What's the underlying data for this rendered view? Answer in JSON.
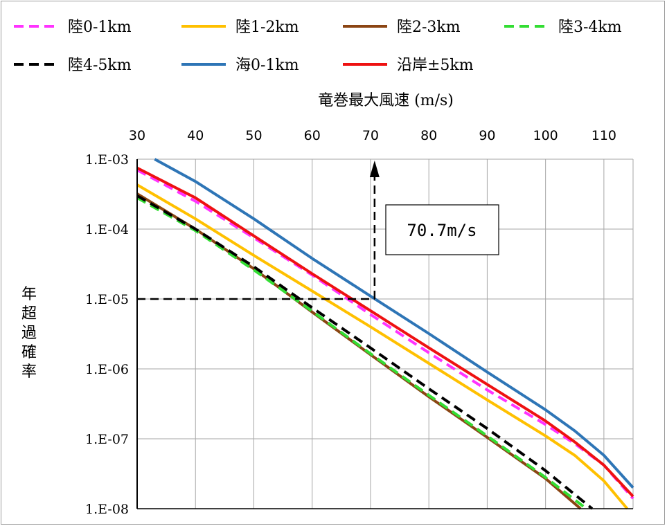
{
  "chart_data": {
    "type": "line",
    "xlabel": "竜巻最大風速 (m/s)",
    "ylabel": "年超過確率",
    "x_axis_position": "top",
    "xlim": [
      30,
      115
    ],
    "ylim": [
      1e-08,
      0.001
    ],
    "y_scale": "log",
    "x_ticks": [
      30,
      40,
      50,
      60,
      70,
      80,
      90,
      100,
      110
    ],
    "y_ticks": [
      {
        "value": 0.001,
        "label": "1.E-03"
      },
      {
        "value": 0.0001,
        "label": "1.E-04"
      },
      {
        "value": 1e-05,
        "label": "1.E-05"
      },
      {
        "value": 1e-06,
        "label": "1.E-06"
      },
      {
        "value": 1e-07,
        "label": "1.E-07"
      },
      {
        "value": 1e-08,
        "label": "1.E-08"
      }
    ],
    "grid": true,
    "legend_placement": "top",
    "series": [
      {
        "name": "陸0-1km",
        "color": "#ff33ff",
        "dash": true,
        "x": [
          30,
          40,
          50,
          60,
          70,
          80,
          90,
          100,
          105,
          110,
          115
        ],
        "y": [
          0.0007,
          0.00025,
          7.5e-05,
          2.2e-05,
          6e-06,
          1.7e-06,
          5e-07,
          1.6e-07,
          8.5e-08,
          4.2e-08,
          1.4e-08
        ]
      },
      {
        "name": "陸1-2km",
        "color": "#ffc000",
        "dash": false,
        "x": [
          30,
          40,
          50,
          60,
          70,
          80,
          90,
          100,
          105,
          110,
          114
        ],
        "y": [
          0.00043,
          0.00014,
          4.2e-05,
          1.3e-05,
          4e-06,
          1.2e-06,
          3.6e-07,
          1.1e-07,
          5.8e-08,
          2.5e-08,
          1e-08
        ]
      },
      {
        "name": "陸2-3km",
        "color": "#8b4513",
        "dash": false,
        "x": [
          30,
          40,
          50,
          60,
          70,
          80,
          90,
          100,
          106
        ],
        "y": [
          0.00032,
          0.0001,
          2.7e-05,
          6.5e-06,
          1.6e-06,
          4e-07,
          1.05e-07,
          2.7e-08,
          1e-08
        ]
      },
      {
        "name": "陸3-4km",
        "color": "#33dd33",
        "dash": true,
        "x": [
          30,
          40,
          50,
          60,
          70,
          80,
          90,
          100,
          107
        ],
        "y": [
          0.00028,
          9.5e-05,
          2.6e-05,
          6.7e-06,
          1.65e-06,
          4.2e-07,
          1.1e-07,
          2.8e-08,
          1e-08
        ]
      },
      {
        "name": "陸4-5km",
        "color": "#000000",
        "dash": true,
        "x": [
          30,
          40,
          50,
          60,
          70,
          80,
          90,
          100,
          108
        ],
        "y": [
          0.0003,
          0.0001,
          2.9e-05,
          7.5e-06,
          2e-06,
          5.2e-07,
          1.4e-07,
          3.5e-08,
          1e-08
        ]
      },
      {
        "name": "海0-1km",
        "color": "#2e75b6",
        "dash": false,
        "x": [
          33,
          40,
          50,
          60,
          70,
          80,
          90,
          100,
          105,
          110,
          115
        ],
        "y": [
          0.001,
          0.00048,
          0.00014,
          3.8e-05,
          1.1e-05,
          3.2e-06,
          9e-07,
          2.6e-07,
          1.3e-07,
          5.8e-08,
          2e-08
        ]
      },
      {
        "name": "沿岸±5km",
        "color": "#ee1111",
        "dash": false,
        "x": [
          30,
          40,
          50,
          60,
          70,
          80,
          90,
          100,
          105,
          110,
          115
        ],
        "y": [
          0.00075,
          0.00028,
          8e-05,
          2.3e-05,
          6.8e-06,
          2e-06,
          6e-07,
          1.8e-07,
          9e-08,
          4.2e-08,
          1.5e-08
        ]
      }
    ],
    "annotation": {
      "text": "70.7m/s",
      "x_value": 70.7,
      "y_value": 1e-05
    }
  }
}
